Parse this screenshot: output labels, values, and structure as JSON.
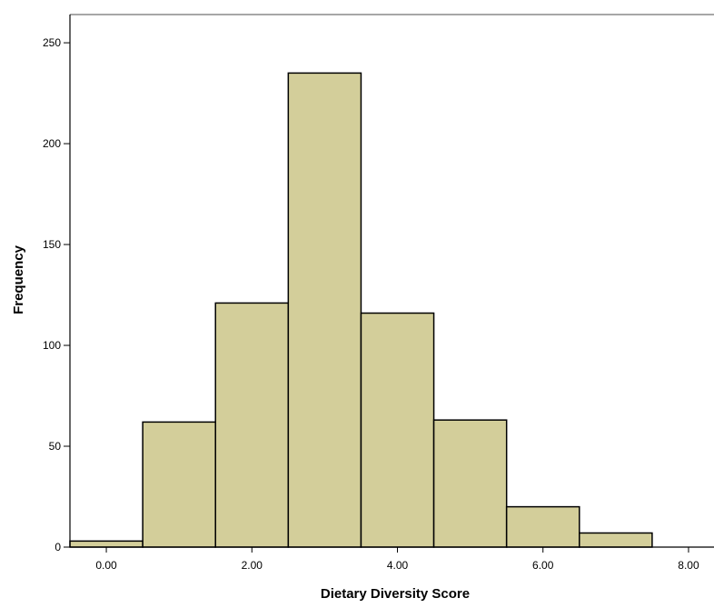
{
  "chart_data": {
    "type": "bar",
    "subtype": "histogram",
    "title": "",
    "xlabel": "Dietary Diversity Score",
    "ylabel": "Frequency",
    "bins": [
      {
        "x0": -0.5,
        "x1": 0.5,
        "value": 3
      },
      {
        "x0": 0.5,
        "x1": 1.5,
        "value": 62
      },
      {
        "x0": 1.5,
        "x1": 2.5,
        "value": 121
      },
      {
        "x0": 2.5,
        "x1": 3.5,
        "value": 235
      },
      {
        "x0": 3.5,
        "x1": 4.5,
        "value": 116
      },
      {
        "x0": 4.5,
        "x1": 5.5,
        "value": 63
      },
      {
        "x0": 5.5,
        "x1": 6.5,
        "value": 20
      },
      {
        "x0": 6.5,
        "x1": 7.5,
        "value": 7
      }
    ],
    "xlim": [
      -0.5,
      8.35
    ],
    "ylim": [
      0,
      264
    ],
    "x_ticks": [
      {
        "value": 0,
        "label": "0.00"
      },
      {
        "value": 2,
        "label": "2.00"
      },
      {
        "value": 4,
        "label": "4.00"
      },
      {
        "value": 6,
        "label": "6.00"
      },
      {
        "value": 8,
        "label": "8.00"
      }
    ],
    "y_ticks": [
      {
        "value": 0,
        "label": "0"
      },
      {
        "value": 50,
        "label": "50"
      },
      {
        "value": 100,
        "label": "100"
      },
      {
        "value": 150,
        "label": "150"
      },
      {
        "value": 200,
        "label": "200"
      },
      {
        "value": 250,
        "label": "250"
      }
    ],
    "grid": false,
    "legend": "none",
    "colors": {
      "bar_fill": "#d3ce9a",
      "bar_stroke": "#000000",
      "axis": "#000000",
      "frame": "#8a8a8a"
    }
  }
}
